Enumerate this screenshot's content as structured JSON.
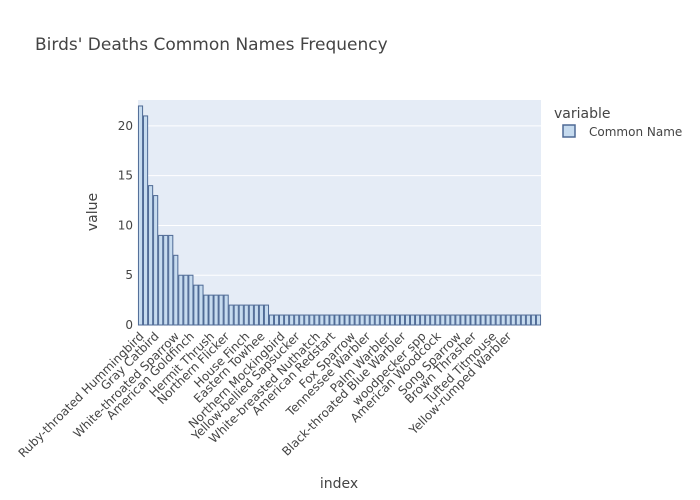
{
  "chart_data": {
    "type": "bar",
    "title": "Birds' Deaths Common Names Frequency",
    "xlabel": "index",
    "ylabel": "value",
    "ylim": [
      0,
      22.6
    ],
    "yticks": [
      0,
      5,
      10,
      15,
      20
    ],
    "grid": true,
    "legend": {
      "title": "variable",
      "position": "top-right"
    },
    "series": [
      {
        "name": "Common Name",
        "color": "#c6dbef",
        "stroke": "#4f6a95",
        "values": [
          22,
          21,
          14,
          13,
          9,
          9,
          9,
          7,
          5,
          5,
          5,
          4,
          4,
          3,
          3,
          3,
          3,
          3,
          2,
          2,
          2,
          2,
          2,
          2,
          2,
          2,
          1,
          1,
          1,
          1,
          1,
          1,
          1,
          1,
          1,
          1,
          1,
          1,
          1,
          1,
          1,
          1,
          1,
          1,
          1,
          1,
          1,
          1,
          1,
          1,
          1,
          1,
          1,
          1,
          1,
          1,
          1,
          1,
          1,
          1,
          1,
          1,
          1,
          1,
          1,
          1,
          1,
          1,
          1,
          1,
          1,
          1,
          1,
          1,
          1,
          1,
          1,
          1,
          1,
          1
        ]
      }
    ],
    "tick_labels": [
      {
        "label": "Ruby-throated Hummingbird",
        "index": 0
      },
      {
        "label": "Gray Catbird",
        "index": 3
      },
      {
        "label": "White-throated Sparrow",
        "index": 7
      },
      {
        "label": "American Goldfinch",
        "index": 10
      },
      {
        "label": "Hermit Thrush",
        "index": 14
      },
      {
        "label": "Northern Flicker",
        "index": 17
      },
      {
        "label": "House Finch",
        "index": 21
      },
      {
        "label": "Eastern Towhee",
        "index": 24
      },
      {
        "label": "Northern Mockingbird",
        "index": 28
      },
      {
        "label": "Yellow-bellied Sapsucker",
        "index": 31
      },
      {
        "label": "White-breasted Nuthatch",
        "index": 35
      },
      {
        "label": "American Redstart",
        "index": 38
      },
      {
        "label": "Fox Sparrow",
        "index": 42
      },
      {
        "label": "Tennessee Warbler",
        "index": 45
      },
      {
        "label": "Palm Warbler",
        "index": 49
      },
      {
        "label": "Black-throated Blue Warbler",
        "index": 52
      },
      {
        "label": "woodpecker spp",
        "index": 56
      },
      {
        "label": "American Woodcock",
        "index": 59
      },
      {
        "label": "Song Sparrow",
        "index": 63
      },
      {
        "label": "Brown Thrasher",
        "index": 66
      },
      {
        "label": "Tufted Titmouse",
        "index": 70
      },
      {
        "label": "Yellow-rumped Warbler",
        "index": 73
      }
    ]
  }
}
